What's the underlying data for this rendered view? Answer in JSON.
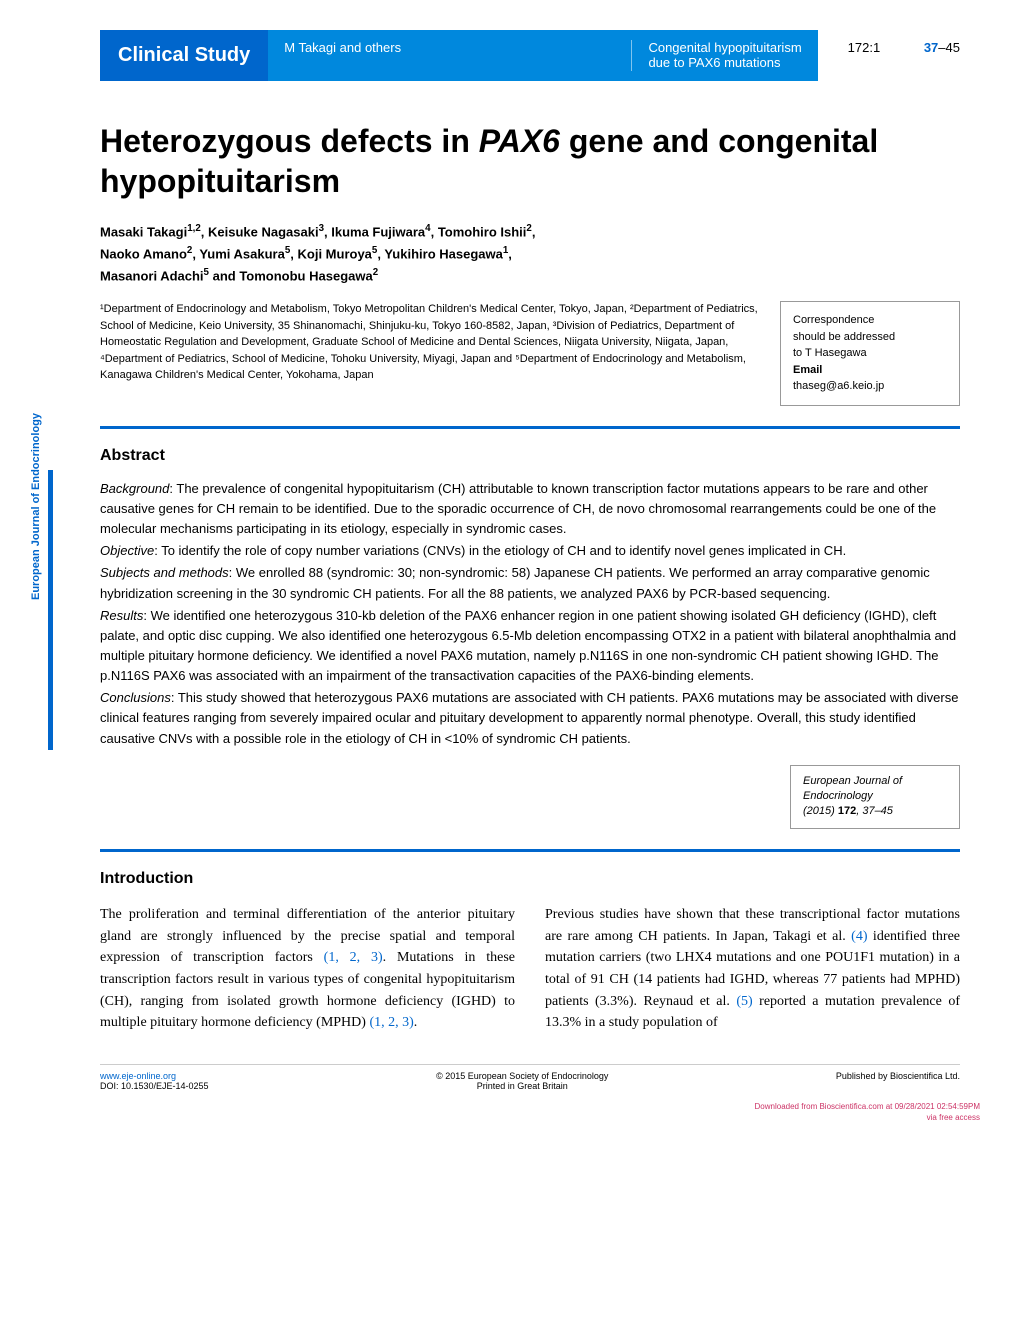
{
  "header": {
    "category": "Clinical Study",
    "authors_short": "M Takagi and others",
    "running_title_line1": "Congenital hypopituitarism",
    "running_title_line2": "due to PAX6 mutations",
    "volume_issue": "172:1",
    "page_start": "37",
    "page_end": "–45"
  },
  "title_part1": "Heterozygous defects in ",
  "title_gene": "PAX6",
  "title_part2": " gene and congenital hypopituitarism",
  "authors_line1": "Masaki Takagi",
  "authors_sup1": "1,2",
  "authors_line1b": ", Keisuke Nagasaki",
  "authors_sup2": "3",
  "authors_line1c": ", Ikuma Fujiwara",
  "authors_sup3": "4",
  "authors_line1d": ", Tomohiro Ishii",
  "authors_sup4": "2",
  "authors_line1e": ",",
  "authors_line2a": "Naoko Amano",
  "authors_sup5": "2",
  "authors_line2b": ", Yumi Asakura",
  "authors_sup6": "5",
  "authors_line2c": ", Koji Muroya",
  "authors_sup7": "5",
  "authors_line2d": ", Yukihiro Hasegawa",
  "authors_sup8": "1",
  "authors_line2e": ",",
  "authors_line3a": "Masanori Adachi",
  "authors_sup9": "5",
  "authors_line3b": " and Tomonobu Hasegawa",
  "authors_sup10": "2",
  "affiliations": "¹Department of Endocrinology and Metabolism, Tokyo Metropolitan Children's Medical Center, Tokyo, Japan, ²Department of Pediatrics, School of Medicine, Keio University, 35 Shinanomachi, Shinjuku-ku, Tokyo 160-8582, Japan, ³Division of Pediatrics, Department of Homeostatic Regulation and Development, Graduate School of Medicine and Dental Sciences, Niigata University, Niigata, Japan, ⁴Department of Pediatrics, School of Medicine, Tohoku University, Miyagi, Japan and ⁵Department of Endocrinology and Metabolism, Kanagawa Children's Medical Center, Yokohama, Japan",
  "correspondence": {
    "line1": "Correspondence",
    "line2": "should be addressed",
    "line3": "to T Hasegawa",
    "email_label": "Email",
    "email": "thaseg@a6.keio.jp"
  },
  "abstract_heading": "Abstract",
  "abstract": {
    "background_label": "Background",
    "background": ": The prevalence of congenital hypopituitarism (CH) attributable to known transcription factor mutations appears to be rare and other causative genes for CH remain to be identified. Due to the sporadic occurrence of CH, de novo chromosomal rearrangements could be one of the molecular mechanisms participating in its etiology, especially in syndromic cases.",
    "objective_label": "Objective",
    "objective": ": To identify the role of copy number variations (CNVs) in the etiology of CH and to identify novel genes implicated in CH.",
    "subjects_label": "Subjects and methods",
    "subjects": ": We enrolled 88 (syndromic: 30; non-syndromic: 58) Japanese CH patients. We performed an array comparative genomic hybridization screening in the 30 syndromic CH patients. For all the 88 patients, we analyzed PAX6 by PCR-based sequencing.",
    "results_label": "Results",
    "results": ": We identified one heterozygous 310-kb deletion of the PAX6 enhancer region in one patient showing isolated GH deficiency (IGHD), cleft palate, and optic disc cupping. We also identified one heterozygous 6.5-Mb deletion encompassing OTX2 in a patient with bilateral anophthalmia and multiple pituitary hormone deficiency. We identified a novel PAX6 mutation, namely p.N116S in one non-syndromic CH patient showing IGHD. The p.N116S PAX6 was associated with an impairment of the transactivation capacities of the PAX6-binding elements.",
    "conclusions_label": "Conclusions",
    "conclusions": ": This study showed that heterozygous PAX6 mutations are associated with CH patients. PAX6 mutations may be associated with diverse clinical features ranging from severely impaired ocular and pituitary development to apparently normal phenotype. Overall, this study identified causative CNVs with a possible role in the etiology of CH in <10% of syndromic CH patients."
  },
  "citation": {
    "journal": "European Journal of Endocrinology",
    "year_vol": "(2015) ",
    "vol": "172",
    "pages": ", 37–45"
  },
  "intro_heading": "Introduction",
  "intro_col1_a": "The proliferation and terminal differentiation of the anterior pituitary gland are strongly influenced by the precise spatial and temporal expression of transcription factors ",
  "intro_col1_ref1": "(1, 2, 3)",
  "intro_col1_b": ". Mutations in these transcription factors result in various types of congenital hypopituitarism (CH), ranging from isolated growth hormone deficiency (IGHD) to multiple pituitary hormone deficiency (MPHD) ",
  "intro_col1_ref2": "(1, 2, 3)",
  "intro_col1_c": ".",
  "intro_col2_a": "Previous studies have shown that these transcriptional factor mutations are rare among CH patients. In Japan, Takagi et al. ",
  "intro_col2_ref1": "(4)",
  "intro_col2_b": " identified three mutation carriers (two LHX4 mutations and one POU1F1 mutation) in a total of 91 CH (14 patients had IGHD, whereas 77 patients had MPHD) patients (3.3%). Reynaud et al. ",
  "intro_col2_ref2": "(5)",
  "intro_col2_c": " reported a mutation prevalence of 13.3% in a study population of",
  "footer": {
    "url": "www.eje-online.org",
    "doi": "DOI: 10.1530/EJE-14-0255",
    "copyright": "© 2015 European Society of Endocrinology",
    "printed": "Printed in Great Britain",
    "published": "Published by Bioscientifica Ltd."
  },
  "download_note_line1": "Downloaded from Bioscientifica.com at 09/28/2021 02:54:59PM",
  "download_note_line2": "via free access",
  "side_label": "European Journal of Endocrinology"
}
